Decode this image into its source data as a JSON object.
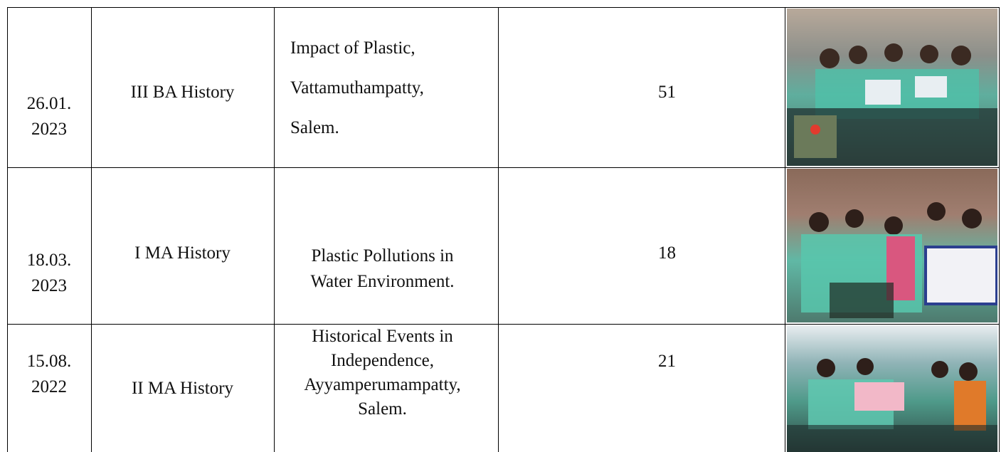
{
  "table": {
    "rows": [
      [
        "26.01.\n2023",
        "III BA History",
        "Impact of Plastic,\nVattamuthampatty,\nSalem.",
        "51"
      ],
      [
        "18.03.\n2023",
        "I MA History",
        "Plastic Pollutions in\nWater Environment.",
        "18"
      ],
      [
        "15.08.\n2022",
        "II MA History",
        "Historical Events in\nIndependence,\nAyyamperumampatty,\nSalem.",
        "21"
      ]
    ]
  }
}
